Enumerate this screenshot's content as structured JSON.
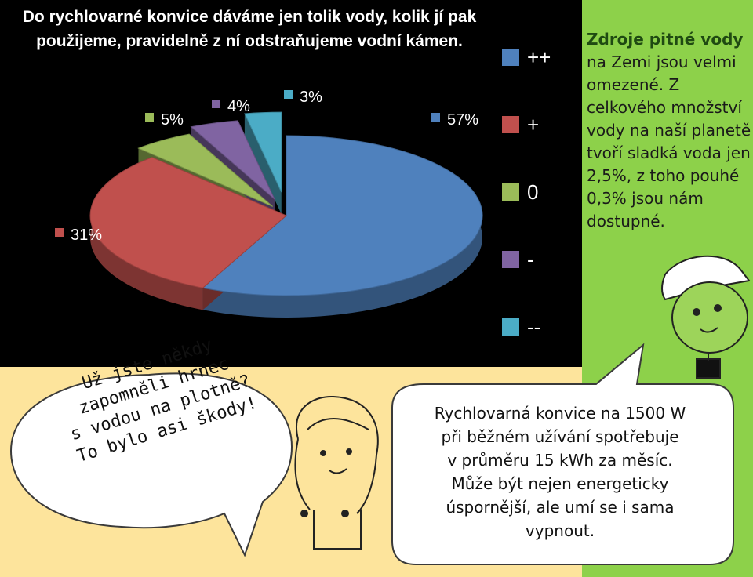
{
  "chart_data": {
    "type": "pie",
    "title": "Do rychlovarné konvice dáváme jen tolik vody, kolik jí pak použijeme, pravidelně z ní odstraňujeme vodní kámen.",
    "slices": [
      {
        "legend": "++",
        "value": 57,
        "label": "57%",
        "color": "#4f81bd"
      },
      {
        "legend": "+",
        "value": 31,
        "label": "31%",
        "color": "#c0504d"
      },
      {
        "legend": "0",
        "value": 5,
        "label": "5%",
        "color": "#9bbb59"
      },
      {
        "legend": "-",
        "value": 4,
        "label": "4%",
        "color": "#8064a2"
      },
      {
        "legend": "--",
        "value": 3,
        "label": "3%",
        "color": "#4bacc6"
      }
    ],
    "legend_placement": "right"
  },
  "side_note": {
    "highlight": "Zdroje pitné vody",
    "text": "na Zemi jsou velmi omezené. Z celkového množství vody na naší planetě tvoří sladká voda jen 2,5%, z toho pouhé 0,3% jsou nám dostupné."
  },
  "bubble_left": {
    "lines": [
      "Už jste někdy",
      "zapomněli hrnec",
      "s vodou na plotně?",
      "To bylo asi škody!"
    ]
  },
  "bubble_right": {
    "lines": [
      "Rychlovarná konvice na 1500 W",
      "při běžném užívání spotřebuje",
      "v průměru 15 kWh za měsíc.",
      "Může být nejen energeticky",
      "úspornější, ale umí se i sama",
      "vypnout."
    ]
  }
}
